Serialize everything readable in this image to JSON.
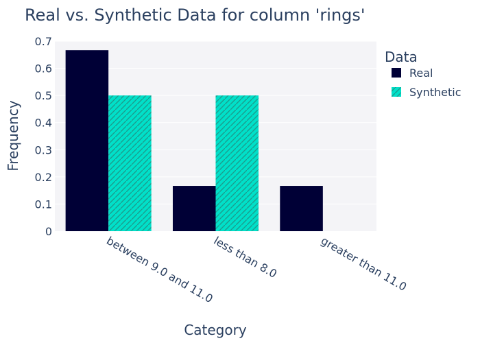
{
  "chart_data": {
    "type": "bar",
    "title": "Real vs. Synthetic Data for column 'rings'",
    "xlabel": "Category",
    "ylabel": "Frequency",
    "categories": [
      "between 9.0 and 11.0",
      "less than 8.0",
      "greater than 11.0"
    ],
    "series": [
      {
        "name": "Real",
        "values": [
          0.6667,
          0.1667,
          0.1667
        ]
      },
      {
        "name": "Synthetic",
        "values": [
          0.5,
          0.5,
          0
        ]
      }
    ],
    "ylim": [
      0,
      0.7
    ],
    "yticks": [
      "0",
      "0.1",
      "0.2",
      "0.3",
      "0.4",
      "0.5",
      "0.6",
      "0.7"
    ],
    "legend": {
      "title": "Data",
      "placement": "top-right"
    },
    "grid": true,
    "colors": {
      "real": "#000036",
      "synthetic": "#01e0c9",
      "hatch": "#1a9e8e",
      "plot_bg": "#f4f4f7"
    }
  }
}
